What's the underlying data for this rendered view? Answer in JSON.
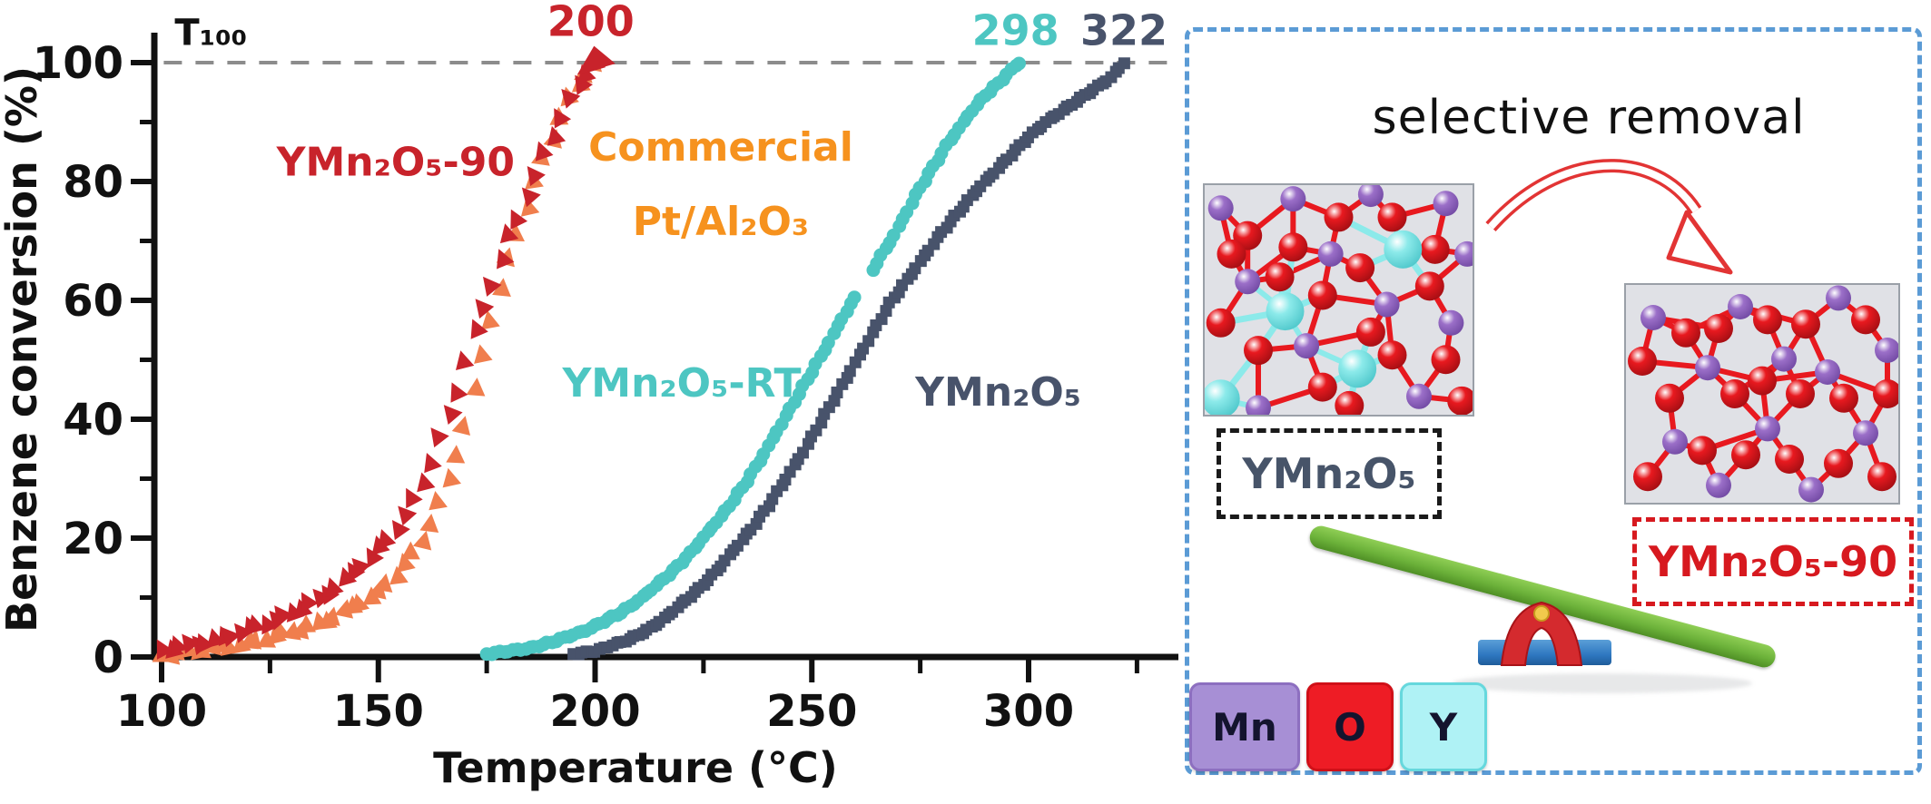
{
  "chart_data": {
    "type": "scatter",
    "title": "",
    "xlabel": "Temperature (°C)",
    "ylabel": "Benzene conversion (%)",
    "xlim": [
      96,
      334
    ],
    "ylim": [
      0,
      105
    ],
    "x_major_ticks": [
      100,
      150,
      200,
      250,
      300
    ],
    "x_minor_ticks": [
      125,
      175,
      225,
      275,
      325
    ],
    "y_major_ticks": [
      0,
      20,
      40,
      60,
      80,
      100
    ],
    "y_minor_ticks": [
      10,
      30,
      50,
      70,
      90
    ],
    "grid": false,
    "legend_position": "in-plot colored text annotations",
    "reference_line": {
      "y": 100,
      "style": "dashed",
      "color": "#8c8c8c",
      "label": "T₁₀₀"
    },
    "t100_values": {
      "YMn₂O₅-90": 200,
      "Commercial Pt/Al₂O₃": 200,
      "YMn₂O₅-RT": 298,
      "YMn₂O₅": 322
    },
    "series": [
      {
        "name": "Commercial Pt/Al₂O₃",
        "marker": "triangle",
        "color": "#f07e4d",
        "label_color": "#f6921e",
        "points": [
          [
            100,
            0.5
          ],
          [
            105,
            1
          ],
          [
            110,
            1.5
          ],
          [
            115,
            2
          ],
          [
            120,
            2.5
          ],
          [
            125,
            3.5
          ],
          [
            130,
            4.5
          ],
          [
            135,
            5.5
          ],
          [
            140,
            7
          ],
          [
            145,
            9
          ],
          [
            150,
            11
          ],
          [
            154,
            14
          ],
          [
            158,
            17.5
          ],
          [
            161,
            21
          ],
          [
            164,
            26
          ],
          [
            167,
            32
          ],
          [
            170,
            39
          ],
          [
            172,
            45
          ],
          [
            174,
            51
          ],
          [
            176,
            57
          ],
          [
            178,
            62
          ],
          [
            180,
            67
          ],
          [
            182,
            71.5
          ],
          [
            184,
            76
          ],
          [
            186,
            80
          ],
          [
            188,
            84
          ],
          [
            190,
            87.5
          ],
          [
            192,
            91
          ],
          [
            194,
            94
          ],
          [
            196,
            96.5
          ],
          [
            198,
            98.5
          ],
          [
            200,
            100
          ]
        ]
      },
      {
        "name": "YMn₂O₅-90",
        "marker": "triangle",
        "color": "#c8232b",
        "label_color": "#c8232b",
        "points": [
          [
            100,
            1.5
          ],
          [
            104,
            2
          ],
          [
            108,
            2.5
          ],
          [
            112,
            3
          ],
          [
            116,
            4
          ],
          [
            120,
            5
          ],
          [
            124,
            6
          ],
          [
            128,
            7
          ],
          [
            132,
            8.5
          ],
          [
            136,
            10
          ],
          [
            140,
            12
          ],
          [
            144,
            14.5
          ],
          [
            148,
            17
          ],
          [
            152,
            20
          ],
          [
            156,
            24
          ],
          [
            159,
            28
          ],
          [
            162,
            33
          ],
          [
            165,
            39
          ],
          [
            168,
            45
          ],
          [
            170,
            50
          ],
          [
            172,
            55
          ],
          [
            174,
            59
          ],
          [
            176,
            63
          ],
          [
            178,
            67
          ],
          [
            180,
            71
          ],
          [
            182,
            74
          ],
          [
            184,
            78
          ],
          [
            186,
            81
          ],
          [
            188,
            85
          ],
          [
            190,
            88
          ],
          [
            192,
            91
          ],
          [
            194,
            94
          ],
          [
            196,
            96.5
          ],
          [
            198,
            98.5
          ],
          [
            200,
            100
          ]
        ]
      },
      {
        "name": "YMn₂O₅-RT",
        "marker": "circle",
        "color": "#4dc6c2",
        "label_color": "#4dc6c2",
        "points": [
          [
            175,
            0.5
          ],
          [
            180,
            1
          ],
          [
            185,
            1.5
          ],
          [
            190,
            2.5
          ],
          [
            194,
            3.5
          ],
          [
            198,
            4.5
          ],
          [
            202,
            6
          ],
          [
            206,
            7.5
          ],
          [
            210,
            9.5
          ],
          [
            214,
            12
          ],
          [
            218,
            14.5
          ],
          [
            222,
            17.5
          ],
          [
            226,
            21
          ],
          [
            230,
            24.5
          ],
          [
            234,
            28.5
          ],
          [
            238,
            33
          ],
          [
            242,
            38
          ],
          [
            246,
            43
          ],
          [
            250,
            48
          ],
          [
            254,
            53
          ],
          [
            257,
            57
          ],
          [
            260,
            60.5
          ],
          [
            263,
            64
          ],
          [
            266,
            67.5
          ],
          [
            269,
            71
          ],
          [
            272,
            75
          ],
          [
            275,
            79
          ],
          [
            278,
            82.5
          ],
          [
            281,
            86
          ],
          [
            284,
            89
          ],
          [
            287,
            92
          ],
          [
            290,
            94.5
          ],
          [
            293,
            96.5
          ],
          [
            295,
            98
          ],
          [
            297,
            99.5
          ],
          [
            298,
            100
          ]
        ]
      },
      {
        "name": "YMn₂O₅",
        "marker": "square",
        "color": "#48536b",
        "label_color": "#48536b",
        "points": [
          [
            195,
            0.5
          ],
          [
            200,
            1
          ],
          [
            204,
            2
          ],
          [
            208,
            3
          ],
          [
            212,
            4.5
          ],
          [
            216,
            6.5
          ],
          [
            220,
            9
          ],
          [
            224,
            11.5
          ],
          [
            228,
            14.5
          ],
          [
            232,
            18
          ],
          [
            236,
            21.5
          ],
          [
            240,
            25.5
          ],
          [
            244,
            30
          ],
          [
            248,
            34.5
          ],
          [
            252,
            39.5
          ],
          [
            256,
            44.5
          ],
          [
            260,
            49.5
          ],
          [
            264,
            54.5
          ],
          [
            268,
            59.5
          ],
          [
            272,
            63.5
          ],
          [
            276,
            67.5
          ],
          [
            280,
            71.5
          ],
          [
            284,
            75
          ],
          [
            288,
            78.5
          ],
          [
            292,
            81.5
          ],
          [
            296,
            84.5
          ],
          [
            300,
            87.5
          ],
          [
            304,
            90
          ],
          [
            308,
            92
          ],
          [
            312,
            94
          ],
          [
            316,
            96
          ],
          [
            319,
            97.5
          ],
          [
            322,
            100
          ]
        ]
      }
    ],
    "annotations": [
      {
        "text": "T₁₀₀",
        "x": 103,
        "y": 103,
        "color": "#111111",
        "size": 40,
        "anchor": "start",
        "name": "t100-line-label"
      },
      {
        "text": "200",
        "x": 199,
        "y": 104.5,
        "color": "#c8232b",
        "size": 46,
        "anchor": "middle",
        "name": "t100-value-ymn2o5-90"
      },
      {
        "text": "298",
        "x": 297,
        "y": 103,
        "color": "#4dc6c2",
        "size": 46,
        "anchor": "middle",
        "name": "t100-value-ymn2o5-rt"
      },
      {
        "text": "322",
        "x": 322,
        "y": 103,
        "color": "#48536b",
        "size": 46,
        "anchor": "middle",
        "name": "t100-value-ymn2o5"
      },
      {
        "text": "YMn₂O₅-90",
        "x": 154,
        "y": 81,
        "color": "#c8232b",
        "size": 44,
        "anchor": "middle",
        "name": "series-label-ymn2o5-90"
      },
      {
        "text": "Commercial",
        "x": 229,
        "y": 83.5,
        "color": "#f6921e",
        "size": 44,
        "anchor": "middle",
        "name": "series-label-commercial-1"
      },
      {
        "text": "Pt/Al₂O₃",
        "x": 229,
        "y": 71,
        "color": "#f6921e",
        "size": 44,
        "anchor": "middle",
        "name": "series-label-commercial-2"
      },
      {
        "text": "YMn₂O₅-RT",
        "x": 220,
        "y": 43.8,
        "color": "#4dc6c2",
        "size": 44,
        "anchor": "middle",
        "name": "series-label-ymn2o5-rt"
      },
      {
        "text": "YMn₂O₅",
        "x": 293,
        "y": 42.3,
        "color": "#48536b",
        "size": 44,
        "anchor": "middle",
        "name": "series-label-ymn2o5"
      }
    ]
  },
  "panel": {
    "title": "selective removal",
    "label_before": "YMn₂O₅",
    "label_after": "YMn₂O₅-90",
    "border_color": "#5b9bd5",
    "arrow_color": "#e23434",
    "atom_colors": {
      "Mn": "#9b6fc8",
      "O": "#e8191f",
      "Y": "#8ceaea"
    },
    "crystal_bg": "#e0e1e6",
    "seesaw": {
      "plank": "#6cb23a",
      "fulcrum": "#d42a2e",
      "pivot": "#f2c94c",
      "base": "#2e77c0"
    },
    "legend": [
      {
        "symbol": "Mn",
        "fill": "#a78fd5",
        "border": "#8d6fc0"
      },
      {
        "symbol": "O",
        "fill": "#ee1c25",
        "border": "#d01018"
      },
      {
        "symbol": "Y",
        "fill": "#aff2f5",
        "border": "#66d8dd"
      }
    ]
  }
}
